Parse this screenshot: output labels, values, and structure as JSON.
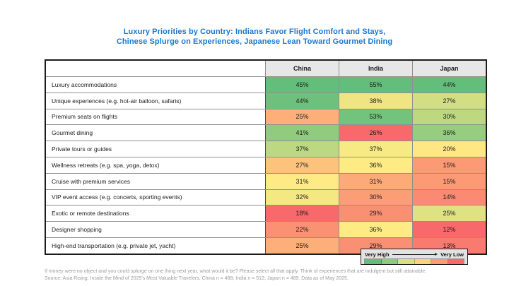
{
  "title": {
    "line1": "Luxury Priorities by Country: Indians Favor Flight Comfort and Stays,",
    "line2": "Chinese Splurge on Experiences, Japanese Lean Toward Gourmet Dining"
  },
  "table": {
    "header": {
      "columns": [
        "China",
        "India",
        "Japan"
      ]
    },
    "rows": [
      {
        "label": "Luxury accommodations",
        "cells": [
          {
            "value": "45%",
            "color": "#63be7b"
          },
          {
            "value": "55%",
            "color": "#63be7b"
          },
          {
            "value": "44%",
            "color": "#63be7b"
          }
        ]
      },
      {
        "label": "Unique experiences (e.g. hot-air balloon, safaris)",
        "cells": [
          {
            "value": "44%",
            "color": "#6ec17c"
          },
          {
            "value": "38%",
            "color": "#efe683"
          },
          {
            "value": "27%",
            "color": "#d1de81"
          }
        ]
      },
      {
        "label": "Premium seats on flights",
        "cells": [
          {
            "value": "25%",
            "color": "#fcaf78"
          },
          {
            "value": "53%",
            "color": "#73c37c"
          },
          {
            "value": "30%",
            "color": "#bed880"
          }
        ]
      },
      {
        "label": "Gourmet dining",
        "cells": [
          {
            "value": "41%",
            "color": "#90cb7e"
          },
          {
            "value": "26%",
            "color": "#f8696b"
          },
          {
            "value": "36%",
            "color": "#97cd7e"
          }
        ]
      },
      {
        "label": "Private tours or guides",
        "cells": [
          {
            "value": "37%",
            "color": "#bcd880"
          },
          {
            "value": "37%",
            "color": "#f7e983"
          },
          {
            "value": "20%",
            "color": "#ffe784"
          }
        ]
      },
      {
        "label": "Wellness retreats (e.g. spa, yoga, detox)",
        "cells": [
          {
            "value": "27%",
            "color": "#fdc37c"
          },
          {
            "value": "36%",
            "color": "#ffeb84"
          },
          {
            "value": "15%",
            "color": "#fb9a74"
          }
        ]
      },
      {
        "label": "Cruise with premium services",
        "cells": [
          {
            "value": "31%",
            "color": "#ffeb84"
          },
          {
            "value": "31%",
            "color": "#fcaa78"
          },
          {
            "value": "15%",
            "color": "#fb9a74"
          }
        ]
      },
      {
        "label": "VIP event access (e.g. concerts, sporting events)",
        "cells": [
          {
            "value": "32%",
            "color": "#f4e883"
          },
          {
            "value": "30%",
            "color": "#fb9d75"
          },
          {
            "value": "14%",
            "color": "#fa8a71"
          }
        ]
      },
      {
        "label": "Exotic or remote destinations",
        "cells": [
          {
            "value": "18%",
            "color": "#f8696b"
          },
          {
            "value": "29%",
            "color": "#fa9073"
          },
          {
            "value": "25%",
            "color": "#dfe282"
          }
        ]
      },
      {
        "label": "Designer shopping",
        "cells": [
          {
            "value": "22%",
            "color": "#fa9173"
          },
          {
            "value": "36%",
            "color": "#ffeb84"
          },
          {
            "value": "12%",
            "color": "#f8696b"
          }
        ]
      },
      {
        "label": "High-end transportation (e.g. private jet, yacht)",
        "cells": [
          {
            "value": "25%",
            "color": "#fcaf78"
          },
          {
            "value": "29%",
            "color": "#fa9073"
          },
          {
            "value": "13%",
            "color": "#f97a6e"
          }
        ]
      }
    ]
  },
  "legend": {
    "high_label": "Very High",
    "low_label": "Very Low",
    "swatches": [
      "#63be7b",
      "#90ca7e",
      "#d9e082",
      "#fdd17d",
      "#fa9c74",
      "#f8696b"
    ]
  },
  "footer": {
    "line1": "If money were no object and you could splurge on one thing next year, what would it be? Please select all that apply. Think of experiences that are indulgent but still attainable.",
    "line2": "Source: Asia Rising: Inside the Mind of 2025's Most Valuable Travelers, China n = 488; India n = 512; Japan n = 489. Data as of May 2025."
  },
  "colors": {
    "title_blue": "#1877d2",
    "header_bg": "#e7e7e7",
    "outer_border": "#1c1c1c",
    "inner_border": "#909090",
    "footnote_gray": "#9c9c9c",
    "scale_green": "#63be7b",
    "scale_yellow": "#ffeb84",
    "scale_red": "#f8696b"
  },
  "chart_data": {
    "type": "heatmap",
    "title": "Luxury Priorities by Country: Indians Favor Flight Comfort and Stays, Chinese Splurge on Experiences, Japanese Lean Toward Gourmet Dining",
    "columns": [
      "China",
      "India",
      "Japan"
    ],
    "rows": [
      "Luxury accommodations",
      "Unique experiences (e.g. hot-air balloon, safaris)",
      "Premium seats on flights",
      "Gourmet dining",
      "Private tours or guides",
      "Wellness retreats (e.g. spa, yoga, detox)",
      "Cruise with premium services",
      "VIP event access (e.g. concerts, sporting events)",
      "Exotic or remote destinations",
      "Designer shopping",
      "High-end transportation (e.g. private jet, yacht)"
    ],
    "values_percent": [
      [
        45,
        55,
        44
      ],
      [
        44,
        38,
        27
      ],
      [
        25,
        53,
        30
      ],
      [
        41,
        26,
        36
      ],
      [
        37,
        37,
        20
      ],
      [
        27,
        36,
        15
      ],
      [
        31,
        31,
        15
      ],
      [
        32,
        30,
        14
      ],
      [
        18,
        29,
        25
      ],
      [
        22,
        36,
        12
      ],
      [
        25,
        29,
        13
      ]
    ],
    "color_scale": {
      "description": "green = very high, yellow = mid, red = very low; shading scaled within each country column",
      "legend_labels": [
        "Very High",
        "Very Low"
      ],
      "legend_position": "bottom-right"
    },
    "footnote_question": "If money were no object and you could splurge on one thing next year, what would it be? Please select all that apply. Think of experiences that are indulgent but still attainable.",
    "source": "Source: Asia Rising: Inside the Mind of 2025's Most Valuable Travelers, China n = 488; India n = 512; Japan n = 489. Data as of May 2025."
  }
}
